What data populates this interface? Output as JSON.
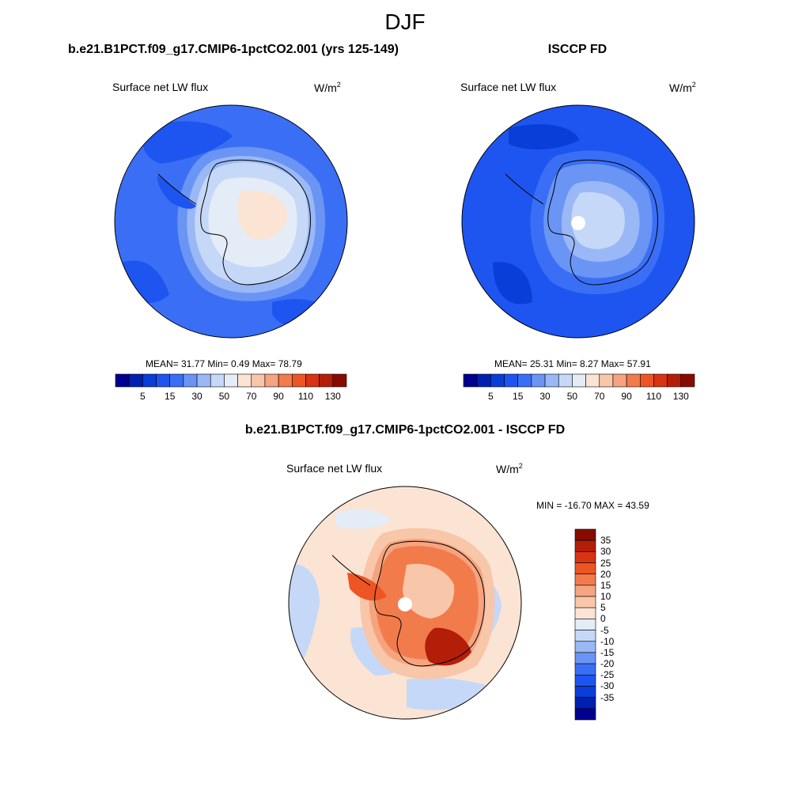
{
  "page_title": "DJF",
  "colors": {
    "abs_scale": [
      "#000090",
      "#0020b0",
      "#0a3ed8",
      "#1e55f0",
      "#3a6ff5",
      "#6a95f5",
      "#9ab8f5",
      "#c6d8f7",
      "#e4ecf8",
      "#fbe4d4",
      "#f8c6a8",
      "#f5a47f",
      "#f27b4c",
      "#ee5525",
      "#d83313",
      "#b31e08",
      "#880b00"
    ],
    "diff_scale": [
      "#000090",
      "#0020b0",
      "#0a3ed8",
      "#1e55f0",
      "#3a6ff5",
      "#6a95f5",
      "#9ab8f5",
      "#c6d8f7",
      "#e4ecf8",
      "#fbe4d4",
      "#f8c6a8",
      "#f5a47f",
      "#f27b4c",
      "#ee5525",
      "#d83313",
      "#b31e08",
      "#880b00"
    ]
  },
  "panels": {
    "model": {
      "title": "b.e21.B1PCT.f09_g17.CMIP6-1pctCO2.001 (yrs 125-149)",
      "variable": "Surface net LW flux",
      "units": "W/m",
      "units_sup": "2",
      "stats": "MEAN=  31.77  Min=   0.49  Max=  78.79"
    },
    "obs": {
      "title": "ISCCP FD",
      "variable": "Surface net LW flux",
      "units": "W/m",
      "units_sup": "2",
      "stats": "MEAN=  25.31  Min=   8.27  Max=  57.91"
    },
    "diff": {
      "title": "b.e21.B1PCT.f09_g17.CMIP6-1pctCO2.001 - ISCCP FD",
      "variable": "Surface net LW flux",
      "units": "W/m",
      "units_sup": "2",
      "stats": "MIN = -16.70 MAX =  43.59"
    }
  },
  "colorbar_abs_ticks": [
    "5",
    "15",
    "30",
    "50",
    "70",
    "90",
    "110",
    "130"
  ],
  "colorbar_diff_ticks": [
    "35",
    "30",
    "25",
    "20",
    "15",
    "10",
    "5",
    "0",
    "-5",
    "-10",
    "-15",
    "-20",
    "-25",
    "-30",
    "-35"
  ]
}
